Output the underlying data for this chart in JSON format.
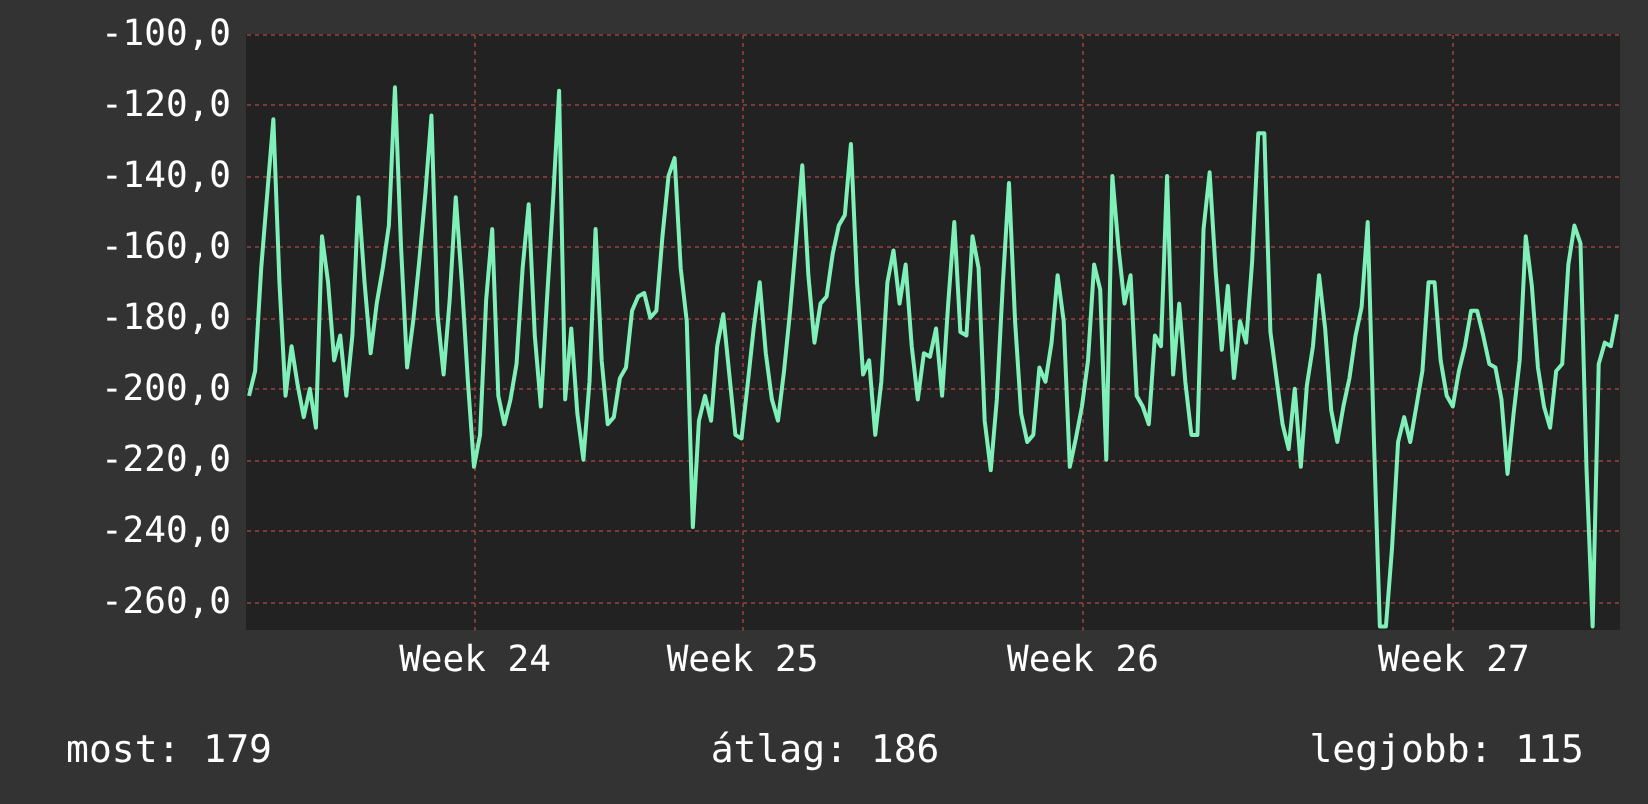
{
  "chart_data": {
    "type": "line",
    "categories": [
      null,
      null,
      null,
      null,
      null,
      null,
      null,
      null,
      null,
      null,
      null,
      null,
      null,
      null,
      null,
      null,
      null,
      null,
      null,
      null,
      null,
      null,
      null,
      null,
      null,
      null,
      null,
      null,
      null,
      null,
      null,
      null,
      null,
      null,
      null,
      null,
      null,
      "Week 24",
      null,
      null,
      null,
      null,
      null,
      null,
      null,
      null,
      null,
      null,
      null,
      null,
      null,
      null,
      null,
      null,
      null,
      null,
      null,
      null,
      null,
      null,
      null,
      null,
      null,
      null,
      null,
      null,
      null,
      null,
      null,
      null,
      null,
      null,
      null,
      null,
      null,
      null,
      null,
      null,
      null,
      null,
      null,
      "Week 25",
      null,
      null,
      null,
      null,
      null,
      null,
      null,
      null,
      null,
      null,
      null,
      null,
      null,
      null,
      null,
      null,
      null,
      null,
      null,
      null,
      null,
      null,
      null,
      null,
      null,
      null,
      null,
      null,
      null,
      null,
      null,
      null,
      null,
      null,
      null,
      null,
      null,
      null,
      null,
      null,
      null,
      null,
      null,
      null,
      null,
      null,
      null,
      null,
      null,
      null,
      null,
      null,
      null,
      null,
      null,
      "Week 26",
      null,
      null,
      null,
      null,
      null,
      null,
      null,
      null,
      null,
      null,
      null,
      null,
      null,
      null,
      null,
      null,
      null,
      null,
      null,
      null,
      null,
      null,
      null,
      null,
      null,
      null,
      null,
      null,
      null,
      null,
      null,
      null,
      null,
      null,
      null,
      null,
      null,
      null,
      null,
      null,
      null,
      null,
      null,
      null,
      null,
      null,
      null,
      null,
      null,
      null,
      null,
      null,
      null,
      null,
      null,
      null,
      null,
      null,
      null,
      null,
      "Week 27",
      null,
      null,
      null,
      null,
      null,
      null,
      null,
      null,
      null,
      null,
      null,
      null,
      null,
      null,
      null,
      null,
      null,
      null,
      null,
      null,
      null,
      null,
      null,
      null,
      null,
      null,
      null
    ],
    "series": [
      {
        "color": "#7ff0b8",
        "values": [
          -202,
          -195,
          -166,
          -145,
          -124,
          -170,
          -202,
          -188,
          -199,
          -208,
          -200,
          -211,
          -157,
          -170,
          -192,
          -185,
          -202,
          -185,
          -146,
          -170,
          -190,
          -176,
          -166,
          -154,
          -115,
          -160,
          -194,
          -181,
          -164,
          -145,
          -123,
          -179,
          -196,
          -175,
          -146,
          -170,
          -198,
          -222,
          -213,
          -175,
          -155,
          -202,
          -210,
          -203,
          -193,
          -166,
          -148,
          -185,
          -205,
          -175,
          -147,
          -116,
          -203,
          -183,
          -207,
          -220,
          -198,
          -155,
          -192,
          -210,
          -208,
          -197,
          -194,
          -178,
          -174,
          -173,
          -180,
          -178,
          -157,
          -140,
          -135,
          -166,
          -181,
          -239,
          -209,
          -202,
          -209,
          -188,
          -179,
          -196,
          -213,
          -214,
          -199,
          -183,
          -170,
          -190,
          -203,
          -209,
          -195,
          -178,
          -158,
          -137,
          -168,
          -187,
          -176,
          -174,
          -162,
          -154,
          -151,
          -131,
          -170,
          -196,
          -192,
          -213,
          -198,
          -170,
          -161,
          -176,
          -165,
          -188,
          -203,
          -190,
          -191,
          -183,
          -202,
          -176,
          -153,
          -184,
          -185,
          -157,
          -166,
          -209,
          -223,
          -203,
          -170,
          -142,
          -181,
          -207,
          -215,
          -213,
          -194,
          -198,
          -187,
          -168,
          -181,
          -222,
          -214,
          -205,
          -192,
          -165,
          -172,
          -220,
          -140,
          -160,
          -176,
          -168,
          -202,
          -205,
          -210,
          -185,
          -188,
          -140,
          -196,
          -176,
          -198,
          -213,
          -213,
          -155,
          -139,
          -167,
          -189,
          -171,
          -197,
          -181,
          -187,
          -164,
          -128,
          -128,
          -184,
          -197,
          -210,
          -217,
          -200,
          -222,
          -199,
          -188,
          -168,
          -183,
          -206,
          -215,
          -205,
          -197,
          -185,
          -177,
          -153,
          -213,
          -267,
          -267,
          -245,
          -215,
          -208,
          -215,
          -205,
          -195,
          -170,
          -170,
          -192,
          -202,
          -205,
          -195,
          -188,
          -178,
          -178,
          -185,
          -193,
          -194,
          -203,
          -224,
          -207,
          -192,
          -157,
          -171,
          -194,
          -205,
          -211,
          -195,
          -193,
          -165,
          -154,
          -159,
          -223,
          -267,
          -193,
          -187,
          -188,
          -179
        ]
      }
    ],
    "ylim": [
      -268,
      -100
    ],
    "yticks": [
      {
        "value": -100,
        "label": "-100,0"
      },
      {
        "value": -120,
        "label": "-120,0"
      },
      {
        "value": -140,
        "label": "-140,0"
      },
      {
        "value": -160,
        "label": "-160,0"
      },
      {
        "value": -180,
        "label": "-180,0"
      },
      {
        "value": -200,
        "label": "-200,0"
      },
      {
        "value": -220,
        "label": "-220,0"
      },
      {
        "value": -240,
        "label": "-240,0"
      },
      {
        "value": -260,
        "label": "-260,0"
      }
    ],
    "grid": true,
    "line_style": "solid",
    "marker": "none",
    "annotations": [
      "most: 179",
      "átlag: 186",
      "legjobb: 115"
    ]
  }
}
